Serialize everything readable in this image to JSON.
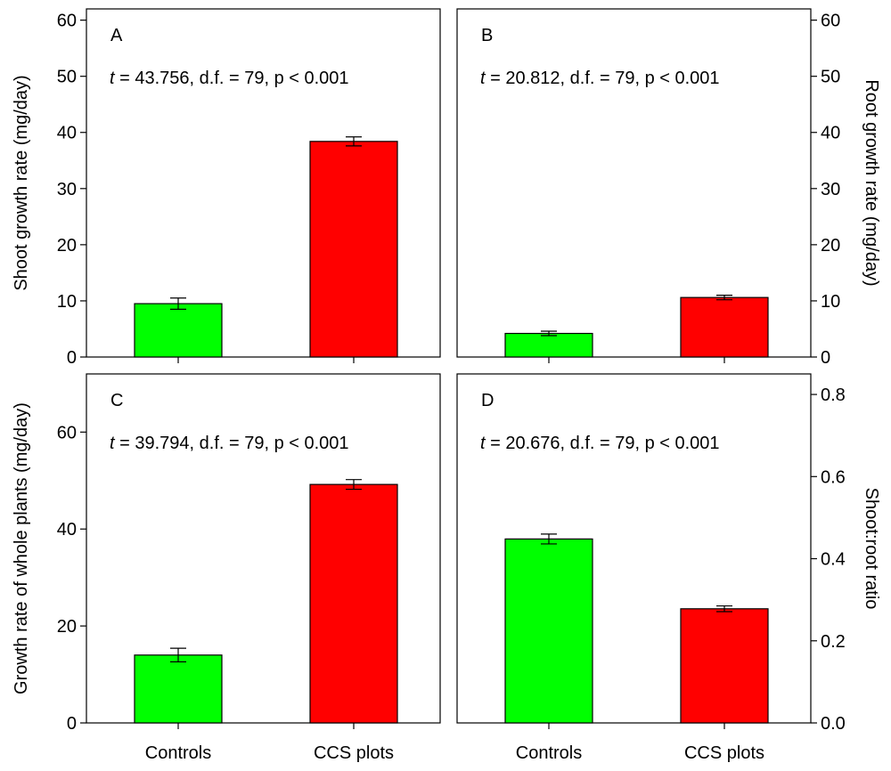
{
  "chart_data": [
    {
      "type": "bar",
      "panel": "A",
      "annotation": {
        "t_symbol": "t",
        "text": " = 43.756, d.f. = 79, p < 0.001"
      },
      "categories": [
        "Controls",
        "CCS plots"
      ],
      "values": [
        9.5,
        38.4
      ],
      "errors": [
        1.0,
        0.8
      ],
      "colors": [
        "#00ff00",
        "#ff0000"
      ],
      "xlabel": "",
      "ylabel": "Shoot growth rate (mg/day)",
      "ylabel_side": "left",
      "ylim": [
        0,
        62
      ],
      "yticks": [
        0,
        10,
        20,
        30,
        40,
        50,
        60
      ],
      "ytick_labels": [
        "0",
        "10",
        "20",
        "30",
        "40",
        "50",
        "60"
      ]
    },
    {
      "type": "bar",
      "panel": "B",
      "annotation": {
        "t_symbol": "t",
        "text": " = 20.812, d.f. = 79, p < 0.001"
      },
      "categories": [
        "Controls",
        "CCS plots"
      ],
      "values": [
        4.2,
        10.6
      ],
      "errors": [
        0.4,
        0.4
      ],
      "colors": [
        "#00ff00",
        "#ff0000"
      ],
      "xlabel": "",
      "ylabel": "Root growth rate (mg/day)",
      "ylabel_side": "right",
      "ylim": [
        0,
        62
      ],
      "yticks": [
        0,
        10,
        20,
        30,
        40,
        50,
        60
      ],
      "ytick_labels": [
        "0",
        "10",
        "20",
        "30",
        "40",
        "50",
        "60"
      ]
    },
    {
      "type": "bar",
      "panel": "C",
      "annotation": {
        "t_symbol": "t",
        "text": " = 39.794, d.f. = 79, p < 0.001"
      },
      "categories": [
        "Controls",
        "CCS plots"
      ],
      "values": [
        14.0,
        49.2
      ],
      "errors": [
        1.4,
        1.0
      ],
      "colors": [
        "#00ff00",
        "#ff0000"
      ],
      "xlabel": "",
      "ylabel": "Growth rate of whole plants (mg/day)",
      "ylabel_side": "left",
      "ylim": [
        0,
        72
      ],
      "yticks": [
        0,
        20,
        40,
        60
      ],
      "ytick_labels": [
        "0",
        "20",
        "40",
        "60"
      ]
    },
    {
      "type": "bar",
      "panel": "D",
      "annotation": {
        "t_symbol": "t",
        "text": " = 20.676, d.f. = 79, p < 0.001"
      },
      "categories": [
        "Controls",
        "CCS plots"
      ],
      "values": [
        0.448,
        0.278
      ],
      "errors": [
        0.012,
        0.007
      ],
      "colors": [
        "#00ff00",
        "#ff0000"
      ],
      "xlabel": "",
      "ylabel": "Shoot:root ratio",
      "ylabel_side": "right",
      "ylim": [
        0,
        0.85
      ],
      "yticks": [
        0,
        0.2,
        0.4,
        0.6,
        0.8
      ],
      "ytick_labels": [
        "0.0",
        "0.2",
        "0.4",
        "0.6",
        "0.8"
      ]
    }
  ]
}
